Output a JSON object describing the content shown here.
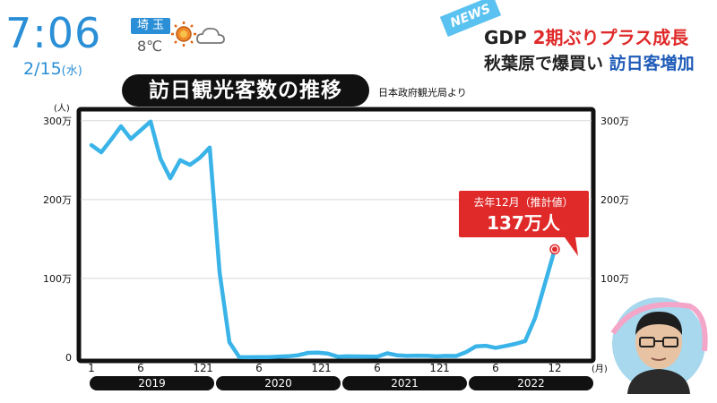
{
  "clock": {
    "time": "7:06",
    "date": "2/15",
    "weekday": "(水)"
  },
  "weather": {
    "prefecture": "埼 玉",
    "temperature": "8℃",
    "icons": [
      "sun-icon",
      "cloud-icon"
    ]
  },
  "news": {
    "tag": "NEWS",
    "headline1_a": "GDP ",
    "headline1_b": "2期ぶりプラス成長",
    "headline2_a": "秋葉原で爆買い ",
    "headline2_b": "訪日客増加"
  },
  "chart_title": "訪日観光客数の推移",
  "source": "日本政府観光局より",
  "colors": {
    "line": "#3ab4e8",
    "accent_red": "#e02a2a",
    "clock_blue": "#2a8fd6",
    "frame": "#111111"
  },
  "chart_data": {
    "type": "line",
    "y_unit_label": "(人)",
    "ylim": [
      0,
      3100000
    ],
    "y_ticks": [
      {
        "value": 0,
        "label": "0"
      },
      {
        "value": 1000000,
        "label": "100万"
      },
      {
        "value": 2000000,
        "label": "200万"
      },
      {
        "value": 3000000,
        "label": "300万"
      }
    ],
    "right_ticks": [
      "100万",
      "200万",
      "300万"
    ],
    "x_tick_labels": [
      "1",
      "6",
      "12",
      "1",
      "6",
      "12",
      "1",
      "6",
      "12",
      "1",
      "6",
      "12"
    ],
    "x_unit_label": "(月)",
    "years": [
      "2019",
      "2020",
      "2021",
      "2022"
    ],
    "series": [
      {
        "values": [
          2690000,
          2600000,
          2760000,
          2930000,
          2770000,
          2880000,
          2990000,
          2520000,
          2270000,
          2500000,
          2440000,
          2530000,
          2660000,
          1080000,
          190000,
          2900,
          1700,
          2600,
          3800,
          8700,
          13700,
          27400,
          56700,
          58700,
          46500,
          7400,
          12300,
          10900,
          10000,
          9300,
          51000,
          25900,
          17700,
          22100,
          20700,
          12100,
          17800,
          16700,
          66100,
          139500,
          147000,
          120400,
          144500,
          169900,
          206500,
          498600,
          934500,
          1370000
        ]
      }
    ],
    "annotation": {
      "label1": "去年12月（推計値）",
      "label2": "137万人"
    },
    "grid": true
  }
}
